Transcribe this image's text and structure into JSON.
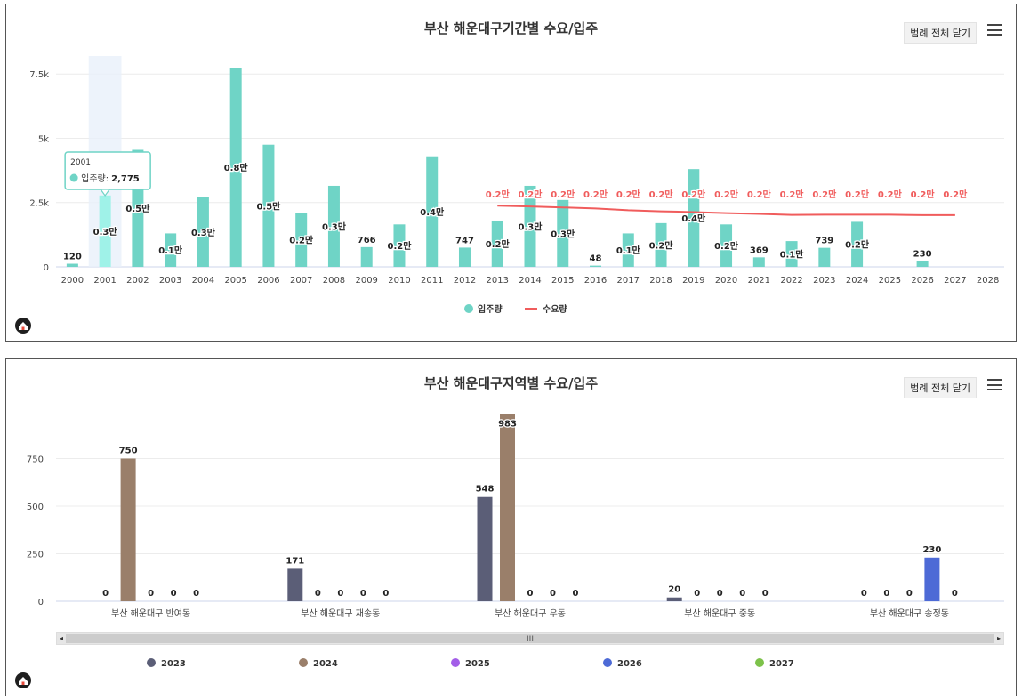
{
  "panel1": {
    "title": "부산 해운대구기간별 수요/입주",
    "legend_toggle": "범례 전체 닫기",
    "legend": [
      {
        "name": "입주량",
        "color": "#6fd4c6",
        "kind": "dot"
      },
      {
        "name": "수요량",
        "color": "#f05c5c",
        "kind": "line"
      }
    ],
    "tooltip": {
      "title": "2001",
      "label": "입주량:",
      "value": "2,775"
    }
  },
  "panel2": {
    "title": "부산 해운대구지역별 수요/입주",
    "legend_toggle": "범례 전체 닫기",
    "legend": [
      {
        "name": "2023",
        "color": "#5b5e77"
      },
      {
        "name": "2024",
        "color": "#9a7f6a"
      },
      {
        "name": "2025",
        "color": "#a35ee8"
      },
      {
        "name": "2026",
        "color": "#4d6ad6"
      },
      {
        "name": "2027",
        "color": "#7dc24a"
      }
    ],
    "scroll_grip": "III"
  },
  "chart_data": [
    {
      "type": "bar",
      "title": "부산 해운대구기간별 수요/입주",
      "ylim": [
        0,
        8200
      ],
      "yticks": [
        0,
        2500,
        5000,
        7500
      ],
      "ytick_labels": [
        "0",
        "2.5k",
        "5k",
        "7.5k"
      ],
      "categories": [
        "2000",
        "2001",
        "2002",
        "2003",
        "2004",
        "2005",
        "2006",
        "2007",
        "2008",
        "2009",
        "2010",
        "2011",
        "2012",
        "2013",
        "2014",
        "2015",
        "2016",
        "2017",
        "2018",
        "2019",
        "2020",
        "2021",
        "2022",
        "2023",
        "2024",
        "2025",
        "2026",
        "2027",
        "2028"
      ],
      "highlight_category": "2001",
      "series": [
        {
          "name": "입주량",
          "type": "bar",
          "color": "#6fd4c6",
          "values": [
            120,
            2775,
            4550,
            1300,
            2700,
            7750,
            4750,
            2100,
            3150,
            766,
            1650,
            4300,
            747,
            1800,
            3150,
            2600,
            48,
            1300,
            1700,
            3800,
            1650,
            369,
            1000,
            739,
            1750,
            null,
            230,
            null,
            null
          ],
          "labels": [
            "120",
            "0.3만",
            "0.5만",
            "0.1만",
            "0.3만",
            "0.8만",
            "0.5만",
            "0.2만",
            "0.3만",
            "766",
            "0.2만",
            "0.4만",
            "747",
            "0.2만",
            "0.3만",
            "0.3만",
            "48",
            "0.1만",
            "0.2만",
            "0.4만",
            "0.2만",
            "369",
            "0.1만",
            "739",
            "0.2만",
            "",
            "230",
            "",
            ""
          ]
        },
        {
          "name": "수요량",
          "type": "line",
          "color": "#f05c5c",
          "values": [
            null,
            null,
            null,
            null,
            null,
            null,
            null,
            null,
            null,
            null,
            null,
            null,
            null,
            2380,
            2350,
            2310,
            2270,
            2200,
            2160,
            2130,
            2090,
            2060,
            2020,
            2030,
            2030,
            2030,
            2010,
            2010,
            null
          ],
          "labels": [
            "",
            "",
            "",
            "",
            "",
            "",
            "",
            "",
            "",
            "",
            "",
            "",
            "",
            "0.2만",
            "0.2만",
            "0.2만",
            "0.2만",
            "0.2만",
            "0.2만",
            "0.2만",
            "0.2만",
            "0.2만",
            "0.2만",
            "0.2만",
            "0.2만",
            "0.2만",
            "0.2만",
            "0.2만",
            ""
          ]
        }
      ]
    },
    {
      "type": "bar",
      "title": "부산 해운대구지역별 수요/입주",
      "ylim": [
        0,
        1000
      ],
      "yticks": [
        0,
        250,
        500,
        750
      ],
      "ytick_labels": [
        "0",
        "250",
        "500",
        "750"
      ],
      "categories": [
        "부산 해운대구 반여동",
        "부산 해운대구 재송동",
        "부산 해운대구 우동",
        "부산 해운대구 중동",
        "부산 해운대구 송정동"
      ],
      "series": [
        {
          "name": "2023",
          "color": "#5b5e77",
          "values": [
            0,
            171,
            548,
            20,
            0
          ]
        },
        {
          "name": "2024",
          "color": "#9a7f6a",
          "values": [
            750,
            0,
            983,
            0,
            0
          ]
        },
        {
          "name": "2025",
          "color": "#a35ee8",
          "values": [
            0,
            0,
            0,
            0,
            0
          ]
        },
        {
          "name": "2026",
          "color": "#4d6ad6",
          "values": [
            0,
            0,
            0,
            0,
            230
          ]
        },
        {
          "name": "2027",
          "color": "#7dc24a",
          "values": [
            0,
            0,
            0,
            0,
            0
          ]
        }
      ]
    }
  ]
}
